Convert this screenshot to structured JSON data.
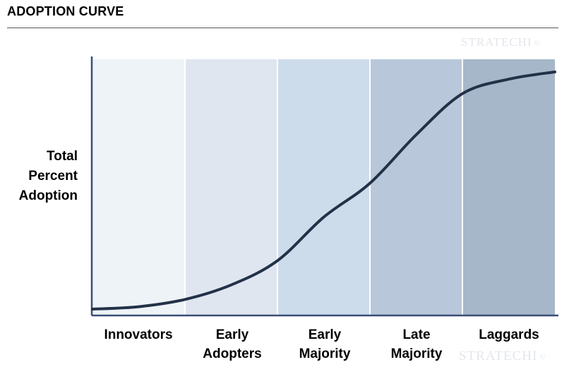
{
  "title": "ADOPTION CURVE",
  "y_axis_label_lines": [
    "Total",
    "Percent",
    "Adoption"
  ],
  "watermark": {
    "text": "STRATECHI",
    "symbol": "©"
  },
  "colors": {
    "band_fills": [
      "#eef3f8",
      "#dfe6f0",
      "#cddceb",
      "#b8c8da",
      "#a6b7ca"
    ],
    "band_divider": "#ffffff",
    "axis": "#3a4d75",
    "curve": "#233148"
  },
  "chart_data": {
    "type": "line",
    "title": "ADOPTION CURVE",
    "ylabel": "Total Percent Adoption",
    "xlabel": "",
    "categories": [
      {
        "lines": [
          "Innovators"
        ]
      },
      {
        "lines": [
          "Early",
          "Adopters"
        ]
      },
      {
        "lines": [
          "Early",
          "Majority"
        ]
      },
      {
        "lines": [
          "Late",
          "Majority"
        ]
      },
      {
        "lines": [
          "Laggards"
        ]
      }
    ],
    "x_range": [
      0,
      5
    ],
    "y_range": [
      0,
      1
    ],
    "curve": {
      "shape": "s-curve",
      "x": [
        0,
        0.5,
        1,
        1.5,
        2,
        2.5,
        3,
        3.5,
        4,
        4.5,
        5
      ],
      "y": [
        0,
        0.01,
        0.04,
        0.1,
        0.2,
        0.38,
        0.52,
        0.72,
        0.89,
        0.95,
        0.98
      ]
    },
    "grid": false,
    "legend": "none"
  }
}
